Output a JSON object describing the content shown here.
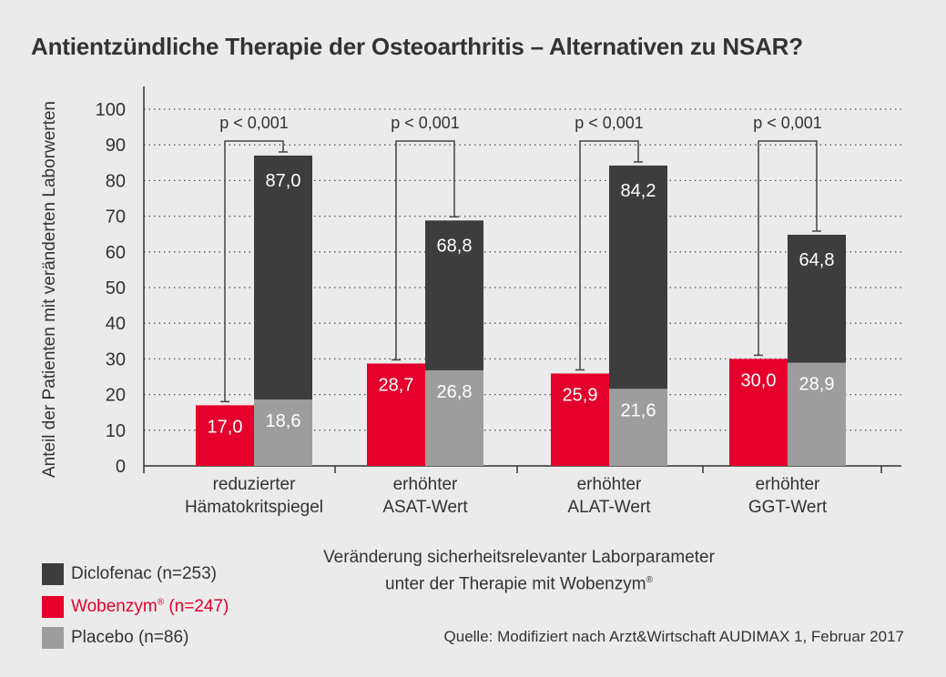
{
  "title": "Antientzündliche Therapie der Osteoarthritis – Alternativen zu NSAR?",
  "colors": {
    "diclofenac": "#3d3d3d",
    "wobenzym": "#e4002b",
    "placebo": "#9d9d9d",
    "background": "#ebebeb",
    "text": "#333333"
  },
  "legend": {
    "diclofenac": "Diclofenac (n=253)",
    "wobenzym": "Wobenzym",
    "wobenzym_reg": "®",
    "wobenzym_n": " (n=247)",
    "placebo": "Placebo (n=86)"
  },
  "xlabel_line1": "Veränderung sicherheitsrelevanter Laborparameter",
  "xlabel_line2": "unter der Therapie mit Wobenzym",
  "xlabel_reg": "®",
  "source": "Quelle: Modifiziert nach Arzt&Wirtschaft AUDIMAX 1, Februar 2017",
  "chart_data": {
    "type": "bar",
    "ylabel": "Anteil der Patienten mit veränderten Laborwerten",
    "ylim": [
      0,
      100
    ],
    "yticks": [
      0,
      10,
      20,
      30,
      40,
      50,
      60,
      70,
      80,
      90,
      100
    ],
    "grid": true,
    "categories": [
      [
        "reduzierter",
        "Hämatokritspiegel"
      ],
      [
        "erhöhter",
        "ASAT-Wert"
      ],
      [
        "erhöhter",
        "ALAT-Wert"
      ],
      [
        "erhöhter",
        "GGT-Wert"
      ]
    ],
    "series": [
      {
        "name": "Diclofenac (n=253)",
        "values": [
          87.0,
          68.8,
          84.2,
          64.8
        ]
      },
      {
        "name": "Wobenzym® (n=247)",
        "values": [
          17.0,
          28.7,
          25.9,
          30.0
        ]
      },
      {
        "name": "Placebo (n=86)",
        "values": [
          18.6,
          26.8,
          21.6,
          28.9
        ]
      }
    ],
    "value_labels": {
      "diclofenac": [
        "87,0",
        "68,8",
        "84,2",
        "64,8"
      ],
      "wobenzym": [
        "17,0",
        "28,7",
        "25,9",
        "30,0"
      ],
      "placebo": [
        "18,6",
        "26,8",
        "21,6",
        "28,9"
      ]
    },
    "significance": [
      "p < 0,001",
      "p < 0,001",
      "p < 0,001",
      "p < 0,001"
    ]
  }
}
